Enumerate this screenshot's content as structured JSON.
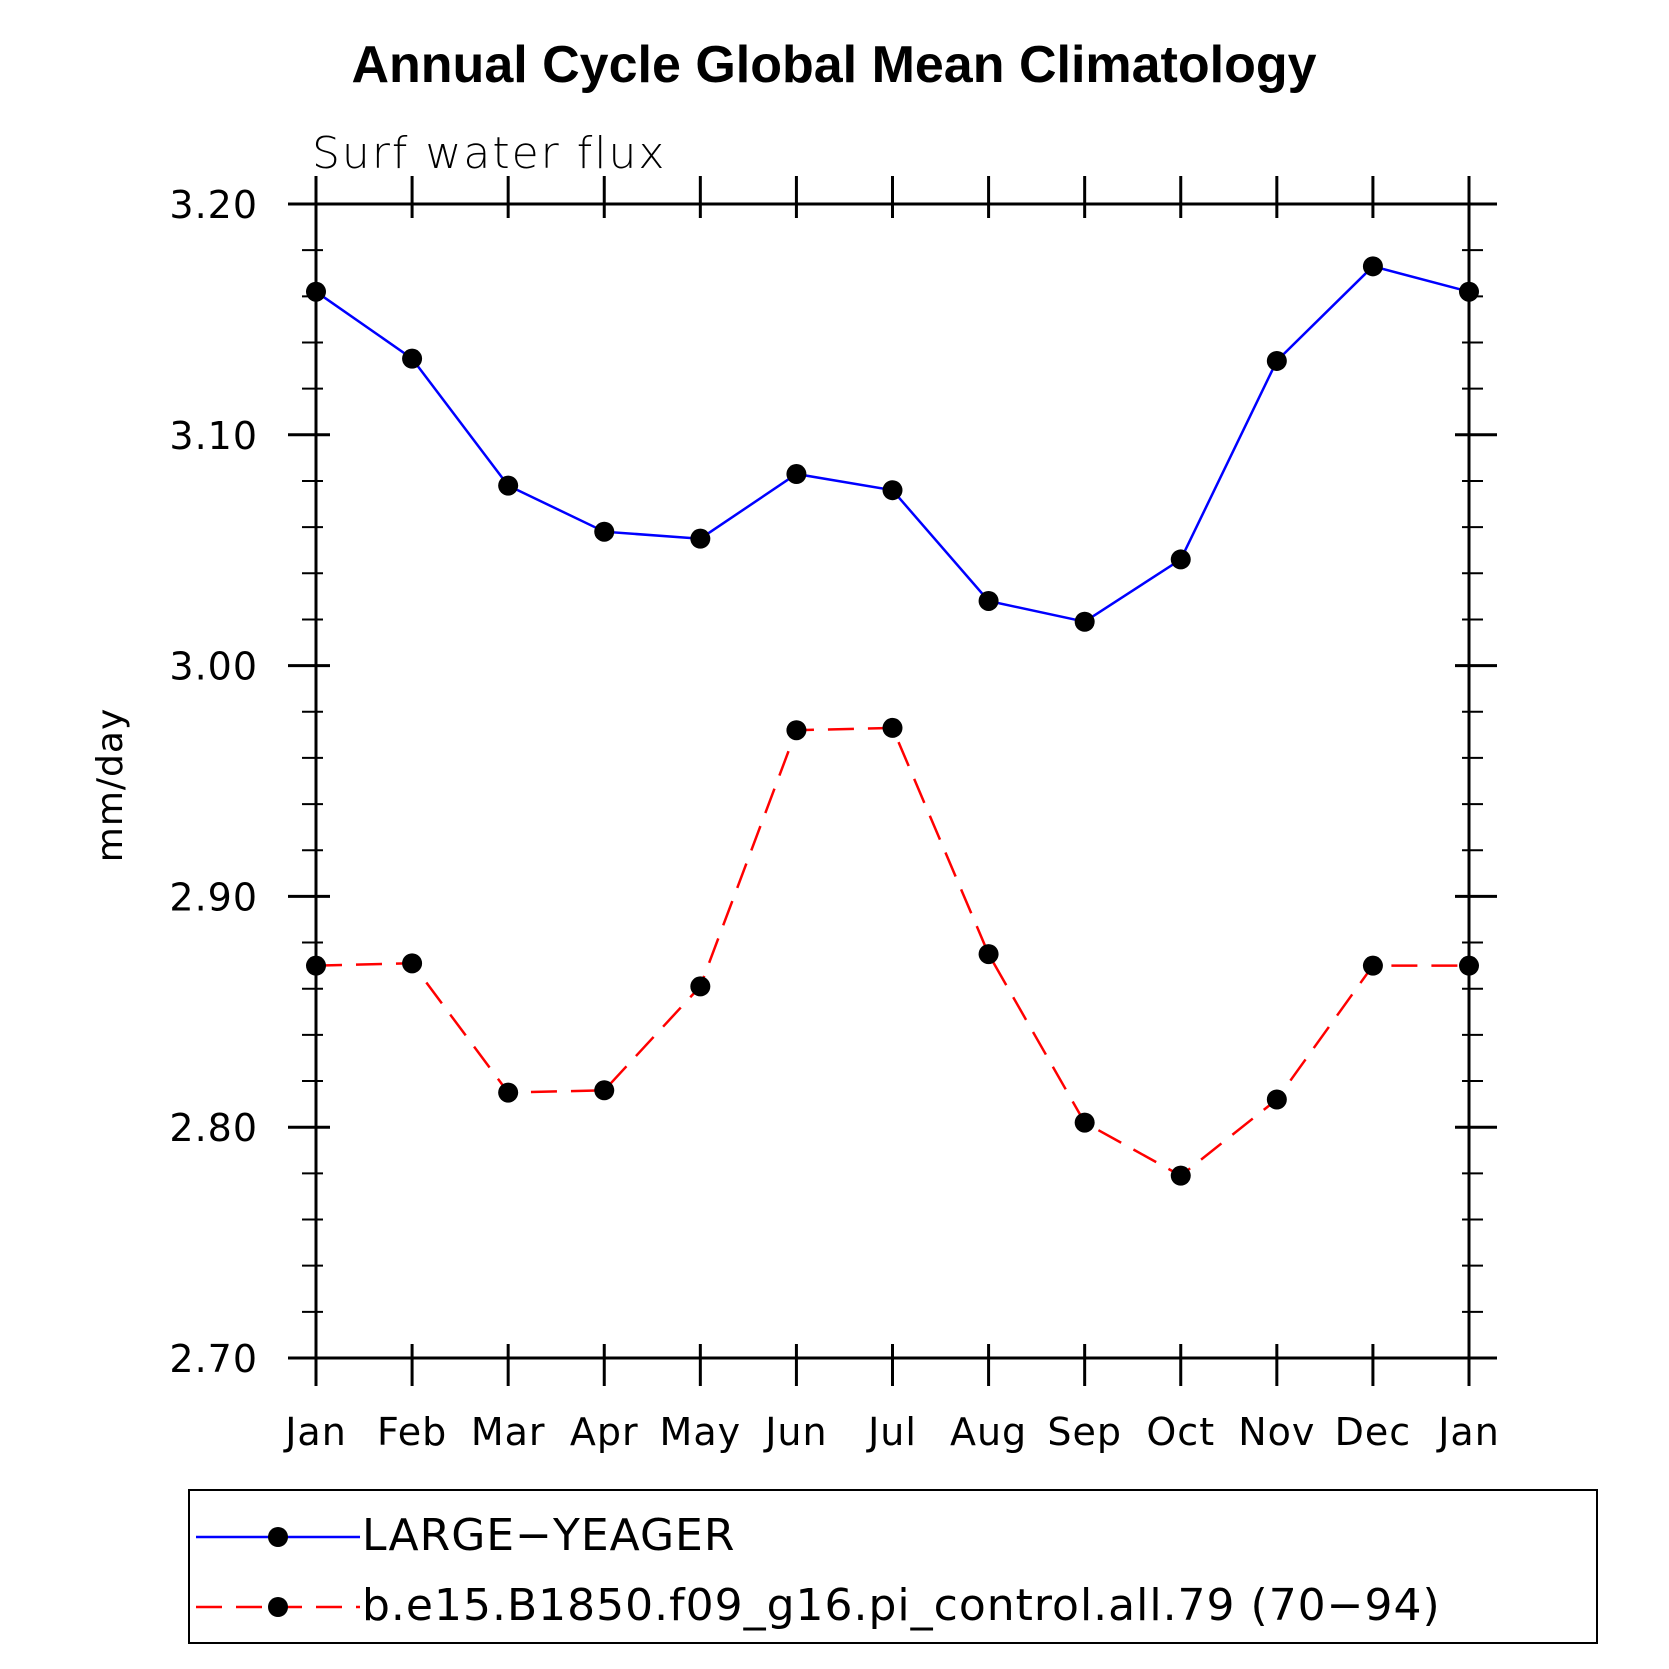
{
  "chart_data": {
    "type": "line",
    "title": "Annual Cycle Global Mean Climatology",
    "subtitle": "Surf water flux",
    "ylabel": "mm/day",
    "xlabel": "",
    "categories": [
      "Jan",
      "Feb",
      "Mar",
      "Apr",
      "May",
      "Jun",
      "Jul",
      "Aug",
      "Sep",
      "Oct",
      "Nov",
      "Dec",
      "Jan"
    ],
    "ylim": [
      2.7,
      3.2
    ],
    "yticks": [
      "2.70",
      "2.80",
      "2.90",
      "3.00",
      "3.10",
      "3.20"
    ],
    "grid": false,
    "legend_position": "bottom",
    "series": [
      {
        "name": "LARGE−YEAGER",
        "color": "#0000ff",
        "dash": "solid",
        "values": [
          3.162,
          3.133,
          3.078,
          3.058,
          3.055,
          3.083,
          3.076,
          3.028,
          3.019,
          3.046,
          3.132,
          3.173,
          3.162
        ]
      },
      {
        "name": "b.e15.B1850.f09_g16.pi_control.all.79 (70−94)",
        "color": "#ff0000",
        "dash": "dashed",
        "values": [
          2.87,
          2.871,
          2.815,
          2.816,
          2.861,
          2.972,
          2.973,
          2.875,
          2.802,
          2.779,
          2.812,
          2.87,
          2.87
        ]
      }
    ]
  }
}
